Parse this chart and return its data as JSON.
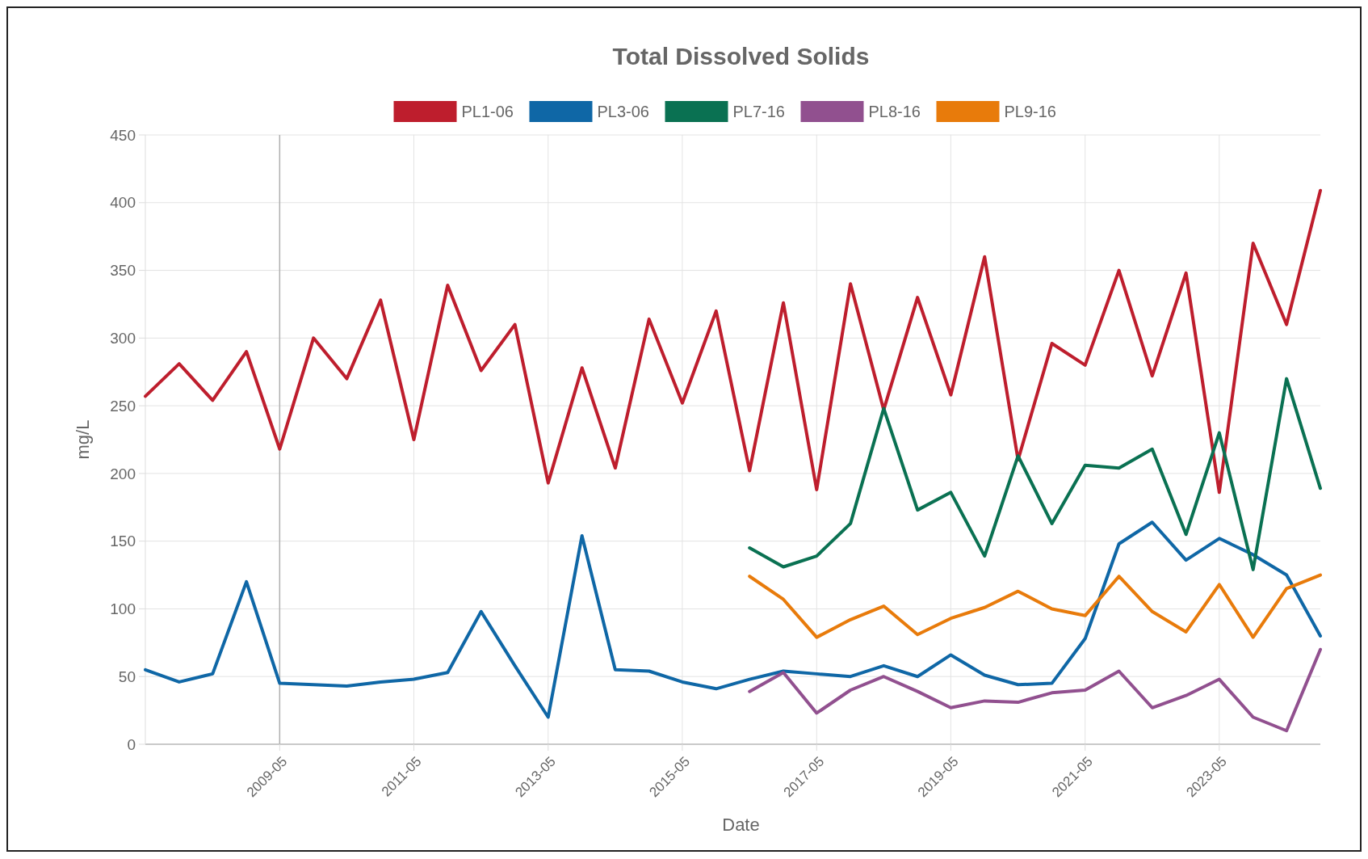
{
  "chart_data": {
    "type": "line",
    "title": "Total Dissolved Solids",
    "xlabel": "Date",
    "ylabel": "mg/L",
    "x": [
      "2007-05",
      "2007-11",
      "2008-05",
      "2008-11",
      "2009-05",
      "2009-11",
      "2010-05",
      "2010-11",
      "2011-05",
      "2011-11",
      "2012-05",
      "2012-11",
      "2013-05",
      "2013-11",
      "2014-05",
      "2014-11",
      "2015-05",
      "2015-11",
      "2016-05",
      "2016-11",
      "2017-05",
      "2017-11",
      "2018-05",
      "2018-11",
      "2019-05",
      "2019-11",
      "2020-05",
      "2020-11",
      "2021-05",
      "2021-11",
      "2022-05",
      "2022-11",
      "2023-05",
      "2023-11",
      "2024-05",
      "2024-11"
    ],
    "series": [
      {
        "name": "PL1-06",
        "color": "#be1e2d",
        "values": [
          257,
          281,
          254,
          290,
          218,
          300,
          270,
          328,
          225,
          339,
          276,
          310,
          193,
          278,
          204,
          314,
          252,
          320,
          202,
          326,
          188,
          340,
          247,
          330,
          258,
          360,
          210,
          296,
          280,
          350,
          272,
          348,
          186,
          370,
          310,
          409
        ]
      },
      {
        "name": "PL3-06",
        "color": "#0f67a6",
        "values": [
          55,
          46,
          52,
          120,
          45,
          44,
          43,
          46,
          48,
          53,
          98,
          58,
          20,
          154,
          55,
          54,
          46,
          41,
          48,
          54,
          52,
          50,
          58,
          50,
          66,
          51,
          44,
          45,
          78,
          148,
          164,
          136,
          152,
          140,
          125,
          80
        ]
      },
      {
        "name": "PL7-16",
        "color": "#0a7152",
        "values": [
          null,
          null,
          null,
          null,
          null,
          null,
          null,
          null,
          null,
          null,
          null,
          null,
          null,
          null,
          null,
          null,
          null,
          null,
          145,
          131,
          139,
          163,
          248,
          173,
          186,
          139,
          213,
          163,
          206,
          204,
          218,
          155,
          230,
          129,
          270,
          189
        ]
      },
      {
        "name": "PL8-16",
        "color": "#91508f",
        "values": [
          null,
          null,
          null,
          null,
          null,
          null,
          null,
          null,
          null,
          null,
          null,
          null,
          null,
          null,
          null,
          null,
          null,
          null,
          39,
          53,
          23,
          40,
          50,
          39,
          27,
          32,
          31,
          38,
          40,
          54,
          27,
          36,
          48,
          20,
          10,
          70
        ]
      },
      {
        "name": "PL9-16",
        "color": "#e87b0b",
        "values": [
          null,
          null,
          null,
          null,
          null,
          null,
          null,
          null,
          null,
          null,
          null,
          null,
          null,
          null,
          null,
          null,
          null,
          null,
          124,
          107,
          79,
          92,
          102,
          81,
          93,
          101,
          113,
          100,
          95,
          124,
          98,
          83,
          118,
          79,
          115,
          125
        ]
      }
    ],
    "xlim": [
      "2007-05",
      "2024-11"
    ],
    "xticks": [
      "2009-05",
      "2011-05",
      "2013-05",
      "2015-05",
      "2017-05",
      "2019-05",
      "2021-05",
      "2023-05"
    ],
    "ylim": [
      0,
      450
    ],
    "yticks": [
      0,
      50,
      100,
      150,
      200,
      250,
      300,
      350,
      400,
      450
    ],
    "ref_lines": [
      {
        "axis": "x",
        "value": "2009-05",
        "color": "#b0b0b0"
      }
    ],
    "grid": true,
    "legend": "top",
    "marker": "none",
    "line_style": "solid"
  }
}
